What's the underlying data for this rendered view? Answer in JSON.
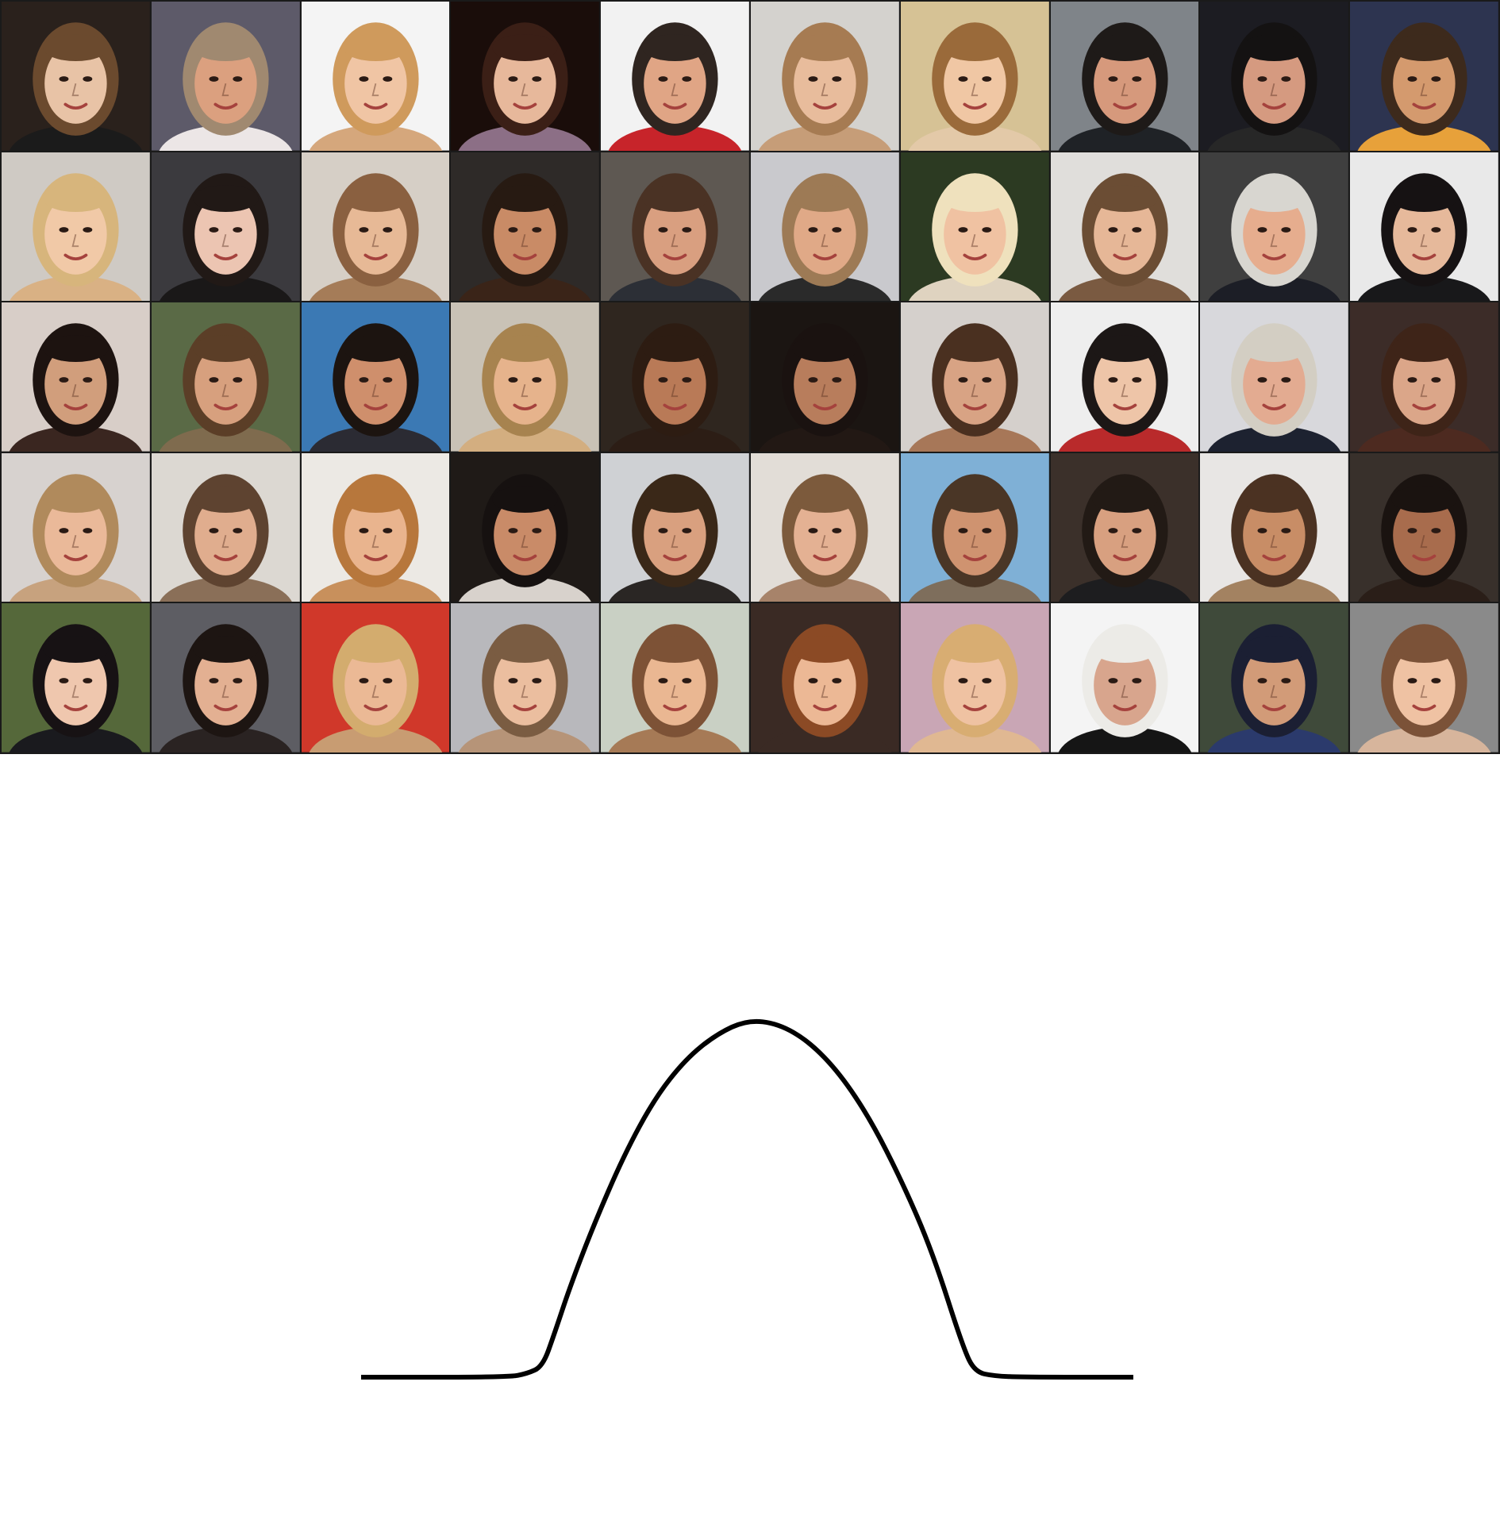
{
  "grid": {
    "rows": 5,
    "cols": 10,
    "tiles": [
      {
        "bg": "#2a211c",
        "skin": "#e8c3a6",
        "hair": "#6b4a2e",
        "clothes": "#1b1b1b"
      },
      {
        "bg": "#5d5a69",
        "skin": "#dba07f",
        "hair": "#a08970",
        "clothes": "#ece6e6"
      },
      {
        "bg": "#f4f4f4",
        "skin": "#f0c5a4",
        "hair": "#cf9a5c",
        "clothes": "#d5a77c"
      },
      {
        "bg": "#1a0d0a",
        "skin": "#e7b89b",
        "hair": "#3b1f16",
        "clothes": "#8c6f86"
      },
      {
        "bg": "#f2f2f2",
        "skin": "#e0a585",
        "hair": "#2f2520",
        "clothes": "#c7242a"
      },
      {
        "bg": "#d4d2ce",
        "skin": "#e8bc9c",
        "hair": "#a67b52",
        "clothes": "#c69d78"
      },
      {
        "bg": "#d6c295",
        "skin": "#f0c7a4",
        "hair": "#9a6a3a",
        "clothes": "#e3c9a8"
      },
      {
        "bg": "#7f8489",
        "skin": "#d6997c",
        "hair": "#1e1a18",
        "clothes": "#1f2226"
      },
      {
        "bg": "#1c1c22",
        "skin": "#d59a80",
        "hair": "#141212",
        "clothes": "#272727"
      },
      {
        "bg": "#2d3450",
        "skin": "#d49a6e",
        "hair": "#3d2a1c",
        "clothes": "#e7a13a"
      },
      {
        "bg": "#cfcac4",
        "skin": "#f1c9a7",
        "hair": "#d7b57c",
        "clothes": "#d9b184"
      },
      {
        "bg": "#3b3a3e",
        "skin": "#ecc5b2",
        "hair": "#211916",
        "clothes": "#1a1818"
      },
      {
        "bg": "#d6cfc6",
        "skin": "#e7b996",
        "hair": "#8a6040",
        "clothes": "#a57c58"
      },
      {
        "bg": "#2e2a28",
        "skin": "#c98b66",
        "hair": "#271a12",
        "clothes": "#3a2418"
      },
      {
        "bg": "#5e5852",
        "skin": "#d99f80",
        "hair": "#4a3224",
        "clothes": "#2c2f36"
      },
      {
        "bg": "#c9c9cd",
        "skin": "#e0a987",
        "hair": "#9d7a55",
        "clothes": "#2a2a2a"
      },
      {
        "bg": "#2c3a22",
        "skin": "#f0c2a2",
        "hair": "#efe1bd",
        "clothes": "#dfd3c0"
      },
      {
        "bg": "#e0dedb",
        "skin": "#e6b797",
        "hair": "#6b4d34",
        "clothes": "#7a5a41"
      },
      {
        "bg": "#3f3f3f",
        "skin": "#e6ad8e",
        "hair": "#d8d6d0",
        "clothes": "#1c1e26"
      },
      {
        "bg": "#e9e9e9",
        "skin": "#e6b99b",
        "hair": "#161213",
        "clothes": "#18181a"
      },
      {
        "bg": "#d8cec8",
        "skin": "#d19e7c",
        "hair": "#1d1310",
        "clothes": "#3a2620"
      },
      {
        "bg": "#5a6a46",
        "skin": "#d7a07e",
        "hair": "#5b3e27",
        "clothes": "#7f6b4e"
      },
      {
        "bg": "#3b79b4",
        "skin": "#cf8f6c",
        "hair": "#1c1410",
        "clothes": "#2b2b33"
      },
      {
        "bg": "#c9c2b6",
        "skin": "#e6b38c",
        "hair": "#a7834f",
        "clothes": "#d3ae80"
      },
      {
        "bg": "#2f261f",
        "skin": "#b97a57",
        "hair": "#2d1c12",
        "clothes": "#2c1d15"
      },
      {
        "bg": "#1b1512",
        "skin": "#b87d5c",
        "hair": "#1a1210",
        "clothes": "#221814"
      },
      {
        "bg": "#d5d0cc",
        "skin": "#d8a384",
        "hair": "#4a3020",
        "clothes": "#a77758"
      },
      {
        "bg": "#eeeeee",
        "skin": "#eec5a8",
        "hair": "#1c1716",
        "clothes": "#b92a2b"
      },
      {
        "bg": "#d8d8dc",
        "skin": "#e3ab91",
        "hair": "#d3cec3",
        "clothes": "#1d2230"
      },
      {
        "bg": "#3c2c28",
        "skin": "#dba689",
        "hair": "#3e2418",
        "clothes": "#4d2a20"
      },
      {
        "bg": "#d7d2cf",
        "skin": "#eab999",
        "hair": "#b08a5c",
        "clothes": "#c7a27e"
      },
      {
        "bg": "#dcd8d2",
        "skin": "#e0ad8e",
        "hair": "#5e4330",
        "clothes": "#8a6f58"
      },
      {
        "bg": "#ece9e4",
        "skin": "#e9b48e",
        "hair": "#b7773c",
        "clothes": "#c8905c"
      },
      {
        "bg": "#1f1a17",
        "skin": "#c98b68",
        "hair": "#161110",
        "clothes": "#d8d2cc"
      },
      {
        "bg": "#cfd1d4",
        "skin": "#d9a07f",
        "hair": "#3a2818",
        "clothes": "#2a2624"
      },
      {
        "bg": "#e2ddd7",
        "skin": "#e4b193",
        "hair": "#7c5a3c",
        "clothes": "#a7836a"
      },
      {
        "bg": "#7fb0d6",
        "skin": "#cf9370",
        "hair": "#4a3626",
        "clothes": "#7e6e5c"
      },
      {
        "bg": "#3b302a",
        "skin": "#d8a080",
        "hair": "#221a15",
        "clothes": "#1d1d1f"
      },
      {
        "bg": "#e8e6e4",
        "skin": "#c88d66",
        "hair": "#4b3222",
        "clothes": "#a38261"
      },
      {
        "bg": "#38302b",
        "skin": "#a86c4d",
        "hair": "#1a1310",
        "clothes": "#2a1e18"
      },
      {
        "bg": "#55683a",
        "skin": "#efc7ae",
        "hair": "#171214",
        "clothes": "#1a1a1e"
      },
      {
        "bg": "#5d5d63",
        "skin": "#e3b092",
        "hair": "#1d1512",
        "clothes": "#2a2322"
      },
      {
        "bg": "#d0382a",
        "skin": "#ebb995",
        "hair": "#d3ac6e",
        "clothes": "#c89c72"
      },
      {
        "bg": "#b8b8bc",
        "skin": "#ebbe9f",
        "hair": "#7a5c42",
        "clothes": "#b69478"
      },
      {
        "bg": "#c9d0c4",
        "skin": "#eab792",
        "hair": "#7d5236",
        "clothes": "#a67a56"
      },
      {
        "bg": "#3a2a24",
        "skin": "#ecb895",
        "hair": "#8b4a25",
        "clothes": "#3a2a24"
      },
      {
        "bg": "#c9a6b5",
        "skin": "#efc2a2",
        "hair": "#d8ad72",
        "clothes": "#e0b892"
      },
      {
        "bg": "#f4f4f4",
        "skin": "#d8a58d",
        "hair": "#ecebe7",
        "clothes": "#151515"
      },
      {
        "bg": "#3f4a3a",
        "skin": "#d29b78",
        "hair": "#1b1f33",
        "clothes": "#2b3a6c"
      },
      {
        "bg": "#8a8a8a",
        "skin": "#efc2a3",
        "hair": "#7b5238",
        "clothes": "#d7b59c"
      }
    ]
  },
  "curve_data": {
    "type": "line",
    "points": [
      [
        0,
        0
      ],
      [
        0.19,
        0
      ],
      [
        0.215,
        0.01
      ],
      [
        0.235,
        0.03
      ],
      [
        0.25,
        0.12
      ],
      [
        0.27,
        0.25
      ],
      [
        0.3,
        0.42
      ],
      [
        0.34,
        0.62
      ],
      [
        0.38,
        0.78
      ],
      [
        0.42,
        0.89
      ],
      [
        0.46,
        0.96
      ],
      [
        0.5,
        1.0
      ],
      [
        0.54,
        0.99
      ],
      [
        0.58,
        0.94
      ],
      [
        0.62,
        0.85
      ],
      [
        0.66,
        0.72
      ],
      [
        0.7,
        0.55
      ],
      [
        0.74,
        0.35
      ],
      [
        0.78,
        0.08
      ],
      [
        0.795,
        0.015
      ],
      [
        0.82,
        0.003
      ],
      [
        0.86,
        0
      ],
      [
        1.0,
        0
      ]
    ],
    "stroke": "#000000"
  }
}
